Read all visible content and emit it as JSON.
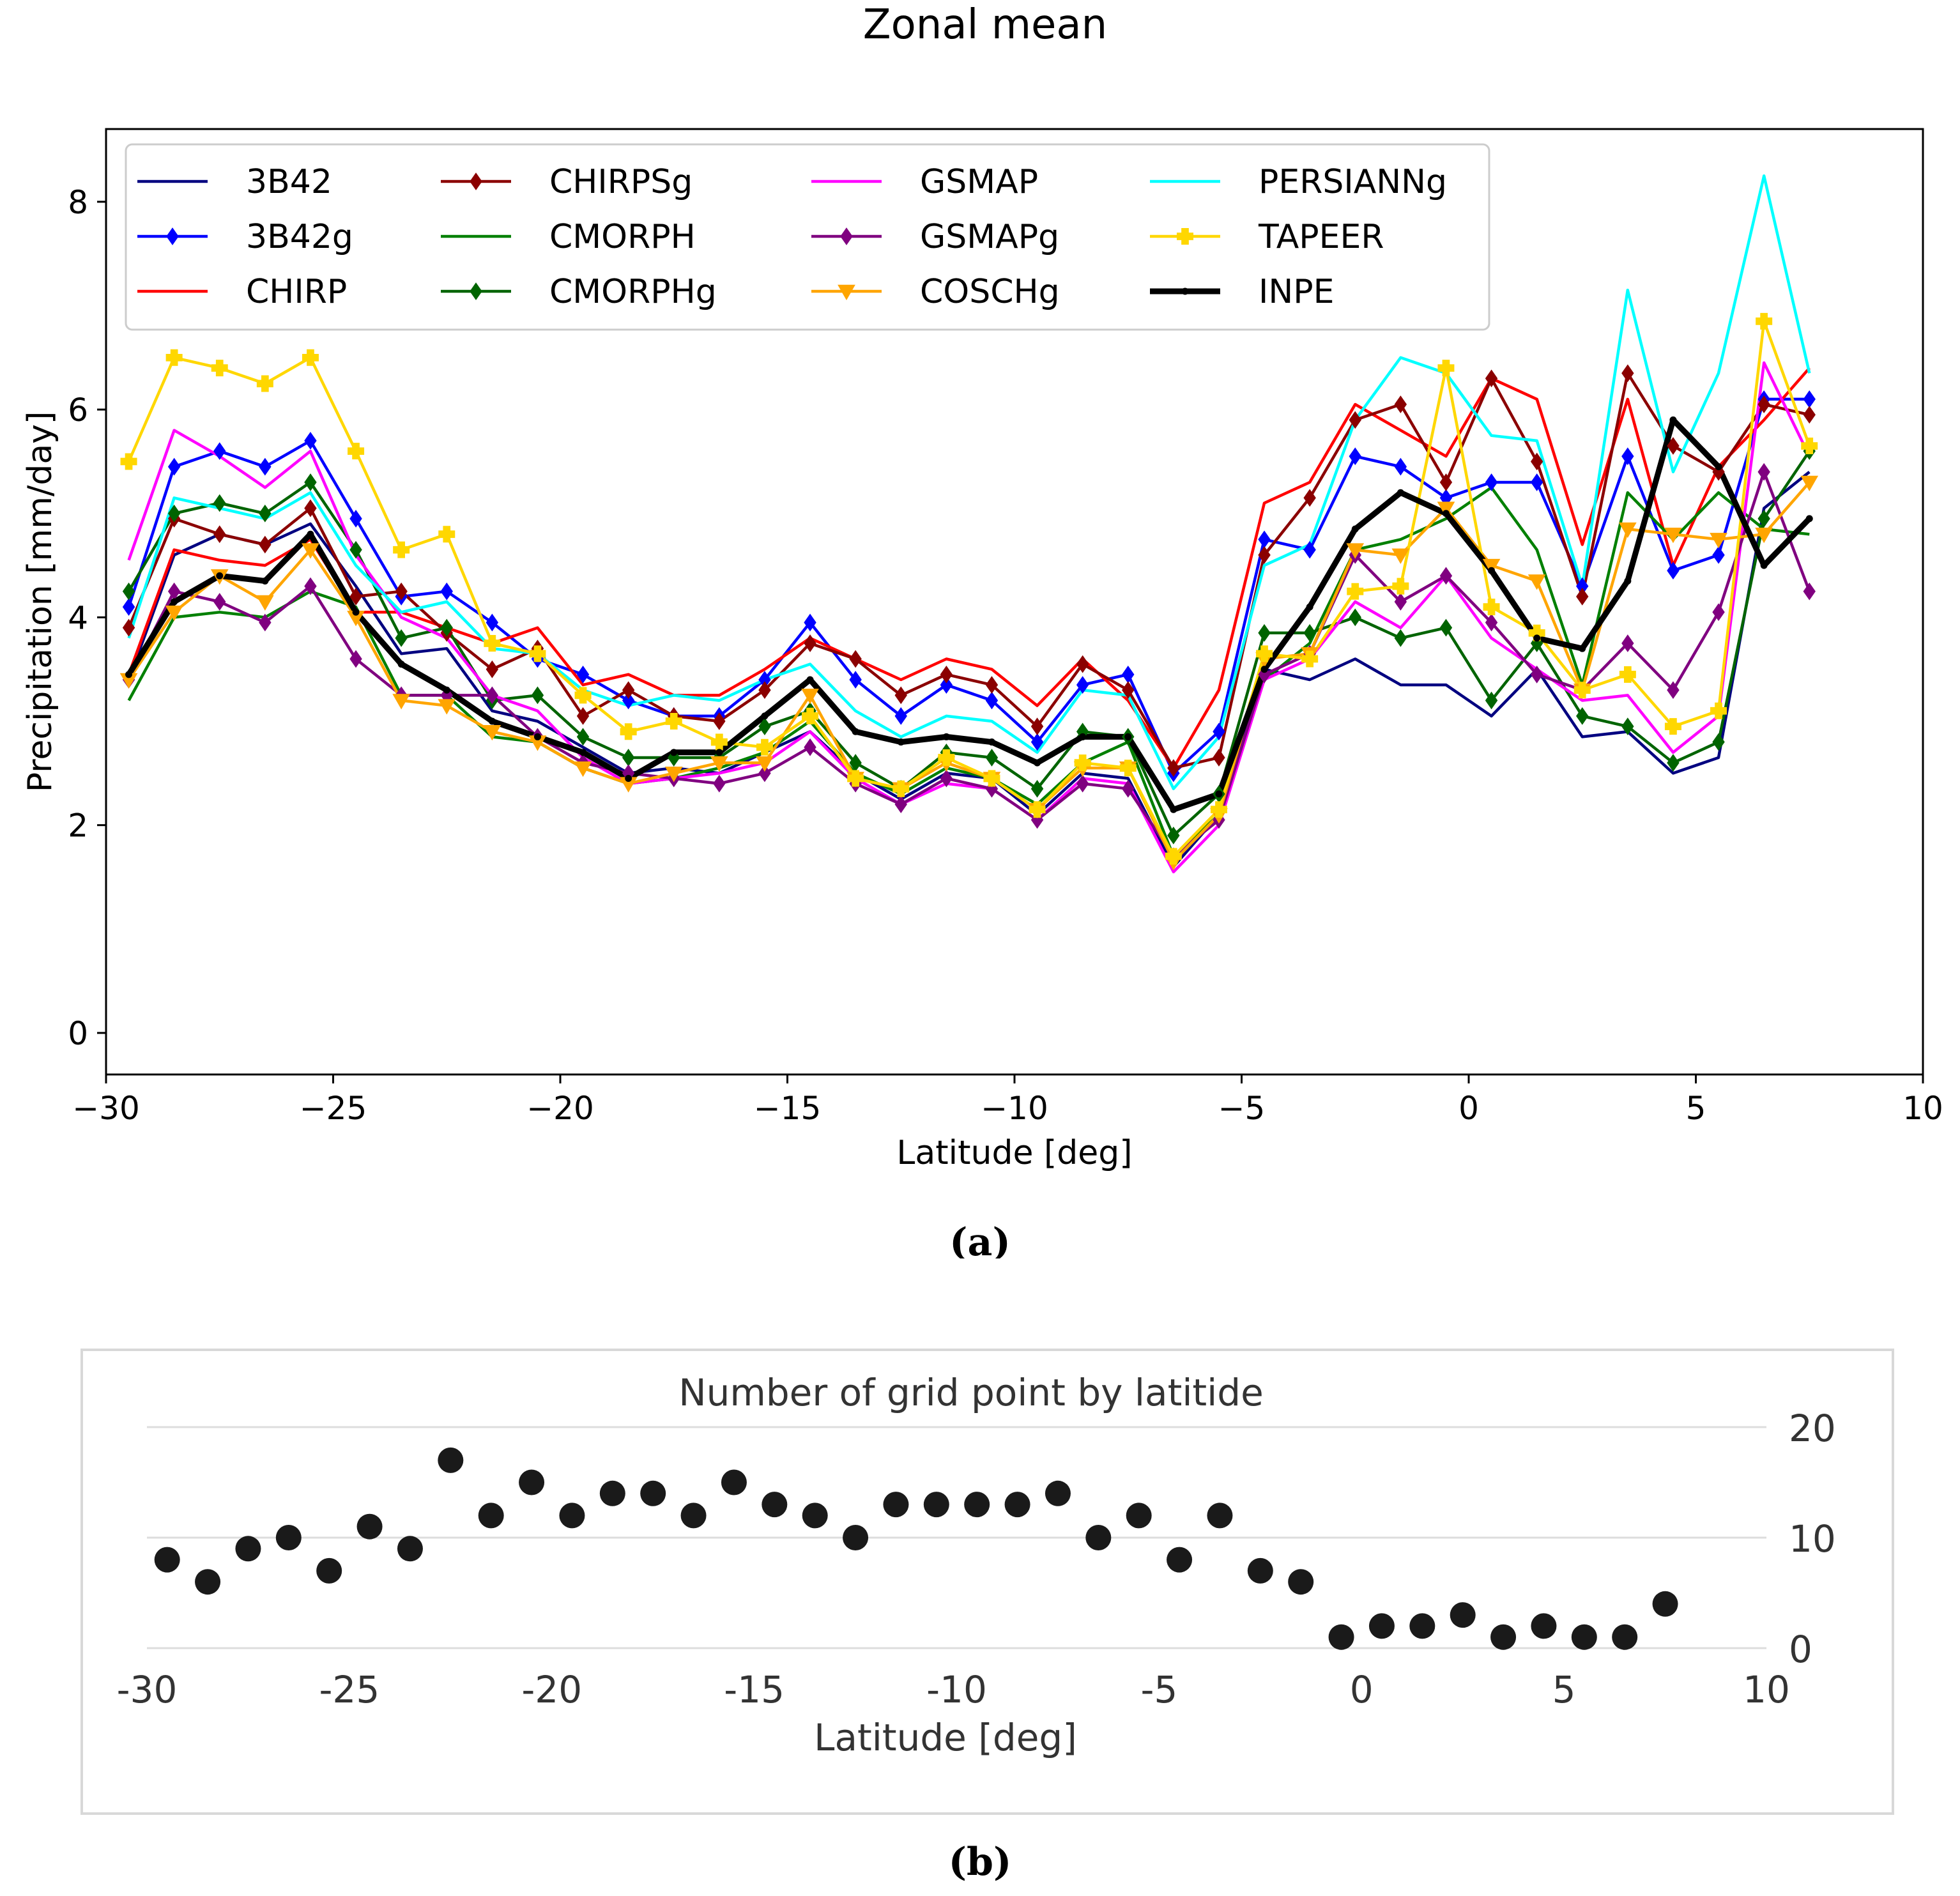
{
  "chart_data": [
    {
      "type": "line",
      "title": "Zonal mean",
      "xlabel": "Latitude [deg]",
      "ylabel": "Precipitation [mm/day]",
      "xlim": [
        -30,
        10
      ],
      "ylim": [
        -0.4,
        8.7
      ],
      "xticks": [
        -30,
        -25,
        -20,
        -15,
        -10,
        -5,
        0,
        5,
        10
      ],
      "xtick_labels": [
        "−30",
        "−25",
        "−20",
        "−15",
        "−10",
        "−5",
        "0",
        "5",
        "10"
      ],
      "yticks": [
        0,
        2,
        4,
        6,
        8
      ],
      "ytick_labels": [
        "0",
        "2",
        "4",
        "6",
        "8"
      ],
      "legend_position": "top-left",
      "caption": "(a)",
      "x": [
        -29.5,
        -28.5,
        -27.5,
        -26.5,
        -25.5,
        -24.5,
        -23.5,
        -22.5,
        -21.5,
        -20.5,
        -19.5,
        -18.5,
        -17.5,
        -16.5,
        -15.5,
        -14.5,
        -13.5,
        -12.5,
        -11.5,
        -10.5,
        -9.5,
        -8.5,
        -7.5,
        -6.5,
        -5.5,
        -4.5,
        -3.5,
        -2.5,
        -1.5,
        -0.5,
        0.5,
        1.5,
        2.5,
        3.5,
        4.5,
        5.5,
        6.5,
        7.5
      ],
      "series": [
        {
          "name": "3B42",
          "color": "#000080",
          "marker": "none",
          "values": [
            3.4,
            4.6,
            4.8,
            4.7,
            4.9,
            4.3,
            3.65,
            3.7,
            3.1,
            3.0,
            2.75,
            2.5,
            2.55,
            2.5,
            2.7,
            2.9,
            2.5,
            2.25,
            2.5,
            2.45,
            2.1,
            2.5,
            2.45,
            1.6,
            2.1,
            3.5,
            3.4,
            3.6,
            3.35,
            3.35,
            3.05,
            3.5,
            2.85,
            2.9,
            2.5,
            2.65,
            5.05,
            5.4
          ]
        },
        {
          "name": "3B42g",
          "color": "#0000ff",
          "marker": "diamond",
          "values": [
            4.1,
            5.45,
            5.6,
            5.45,
            5.7,
            4.95,
            4.2,
            4.25,
            3.95,
            3.6,
            3.45,
            3.2,
            3.05,
            3.05,
            3.4,
            3.95,
            3.4,
            3.05,
            3.35,
            3.2,
            2.8,
            3.35,
            3.45,
            2.5,
            2.9,
            4.75,
            4.65,
            5.55,
            5.45,
            5.15,
            5.3,
            5.3,
            4.3,
            5.55,
            4.45,
            4.6,
            6.1,
            6.1
          ]
        },
        {
          "name": "CHIRP",
          "color": "#ff0000",
          "marker": "none",
          "values": [
            3.45,
            4.65,
            4.55,
            4.5,
            4.75,
            4.05,
            4.05,
            3.9,
            3.75,
            3.9,
            3.35,
            3.45,
            3.25,
            3.25,
            3.5,
            3.8,
            3.6,
            3.4,
            3.6,
            3.5,
            3.15,
            3.6,
            3.2,
            2.55,
            3.3,
            5.1,
            5.3,
            6.05,
            5.8,
            5.55,
            6.3,
            6.1,
            4.7,
            6.1,
            4.5,
            5.45,
            5.9,
            6.4
          ]
        },
        {
          "name": "CHIRPSg",
          "color": "#8b0000",
          "marker": "diamond",
          "values": [
            3.9,
            4.95,
            4.8,
            4.7,
            5.05,
            4.2,
            4.25,
            3.85,
            3.5,
            3.7,
            3.05,
            3.3,
            3.05,
            3.0,
            3.3,
            3.75,
            3.6,
            3.25,
            3.45,
            3.35,
            2.95,
            3.55,
            3.3,
            2.55,
            2.65,
            4.6,
            5.15,
            5.9,
            6.05,
            5.3,
            6.3,
            5.5,
            4.2,
            6.35,
            5.65,
            5.4,
            6.05,
            5.95
          ]
        },
        {
          "name": "CMORPH",
          "color": "#008000",
          "marker": "none",
          "values": [
            3.2,
            4.0,
            4.05,
            4.0,
            4.25,
            4.1,
            3.25,
            3.25,
            2.85,
            2.8,
            2.55,
            2.4,
            2.45,
            2.55,
            2.7,
            3.0,
            2.5,
            2.3,
            2.55,
            2.45,
            2.2,
            2.6,
            2.8,
            1.7,
            2.1,
            3.4,
            3.75,
            4.65,
            4.75,
            4.95,
            5.25,
            4.65,
            3.35,
            5.2,
            4.75,
            5.2,
            4.85,
            4.8
          ]
        },
        {
          "name": "CMORPHg",
          "color": "#006400",
          "marker": "diamond",
          "values": [
            4.25,
            5.0,
            5.1,
            5.0,
            5.3,
            4.65,
            3.8,
            3.9,
            3.2,
            3.25,
            2.85,
            2.65,
            2.65,
            2.65,
            2.95,
            3.1,
            2.6,
            2.35,
            2.7,
            2.65,
            2.35,
            2.9,
            2.85,
            1.9,
            2.3,
            3.85,
            3.85,
            4.0,
            3.8,
            3.9,
            3.2,
            3.75,
            3.05,
            2.95,
            2.6,
            2.8,
            4.95,
            5.6
          ]
        },
        {
          "name": "GSMAP",
          "color": "#ff00ff",
          "marker": "none",
          "values": [
            4.55,
            5.8,
            5.55,
            5.25,
            5.6,
            4.6,
            4.0,
            3.8,
            3.25,
            3.1,
            2.65,
            2.4,
            2.45,
            2.5,
            2.6,
            2.9,
            2.45,
            2.2,
            2.4,
            2.35,
            2.05,
            2.45,
            2.4,
            1.55,
            2.0,
            3.4,
            3.6,
            4.15,
            3.9,
            4.4,
            3.8,
            3.5,
            3.2,
            3.25,
            2.7,
            3.05,
            6.45,
            5.55
          ]
        },
        {
          "name": "GSMAPg",
          "color": "#800080",
          "marker": "diamond",
          "values": [
            3.4,
            4.25,
            4.15,
            3.95,
            4.3,
            3.6,
            3.25,
            3.25,
            3.25,
            2.85,
            2.6,
            2.5,
            2.45,
            2.4,
            2.5,
            2.75,
            2.4,
            2.2,
            2.45,
            2.35,
            2.05,
            2.4,
            2.35,
            1.7,
            2.05,
            3.45,
            3.65,
            4.6,
            4.15,
            4.4,
            3.95,
            3.45,
            3.3,
            3.75,
            3.3,
            4.05,
            5.4,
            4.25
          ]
        },
        {
          "name": "COSCHg",
          "color": "#ffa500",
          "marker": "triangle-down",
          "values": [
            3.4,
            4.05,
            4.4,
            4.15,
            4.65,
            4.0,
            3.2,
            3.15,
            2.9,
            2.8,
            2.55,
            2.4,
            2.5,
            2.6,
            2.6,
            3.25,
            2.45,
            2.35,
            2.6,
            2.45,
            2.15,
            2.55,
            2.55,
            1.65,
            2.1,
            3.6,
            3.65,
            4.65,
            4.6,
            5.05,
            4.5,
            4.35,
            3.3,
            4.85,
            4.8,
            4.75,
            4.8,
            5.3
          ]
        },
        {
          "name": "PERSIANNg",
          "color": "#00ffff",
          "marker": "none",
          "values": [
            3.8,
            5.15,
            5.05,
            4.95,
            5.2,
            4.5,
            4.05,
            4.15,
            3.7,
            3.65,
            3.3,
            3.15,
            3.25,
            3.2,
            3.4,
            3.55,
            3.1,
            2.85,
            3.05,
            3.0,
            2.7,
            3.3,
            3.25,
            2.35,
            2.85,
            4.5,
            4.7,
            5.9,
            6.5,
            6.35,
            5.75,
            5.7,
            4.3,
            7.15,
            5.4,
            6.35,
            8.25,
            6.35
          ]
        },
        {
          "name": "TAPEER",
          "color": "#ffd700",
          "marker": "plus",
          "values": [
            5.5,
            6.5,
            6.4,
            6.25,
            6.5,
            5.6,
            4.65,
            4.8,
            3.75,
            3.65,
            3.25,
            2.9,
            3.0,
            2.8,
            2.75,
            3.05,
            2.45,
            2.35,
            2.65,
            2.45,
            2.15,
            2.6,
            2.55,
            1.7,
            2.15,
            3.65,
            3.6,
            4.25,
            4.3,
            6.4,
            4.1,
            3.85,
            3.3,
            3.45,
            2.95,
            3.1,
            6.85,
            5.65
          ]
        },
        {
          "name": "INPE",
          "color": "#000000",
          "marker": "dot",
          "values": [
            3.45,
            4.15,
            4.4,
            4.35,
            4.8,
            4.05,
            3.55,
            3.3,
            3.0,
            2.85,
            2.7,
            2.45,
            2.7,
            2.7,
            3.05,
            3.4,
            2.9,
            2.8,
            2.85,
            2.8,
            2.6,
            2.85,
            2.85,
            2.15,
            2.3,
            3.5,
            4.1,
            4.85,
            5.2,
            5.0,
            4.45,
            3.8,
            3.7,
            4.35,
            5.9,
            5.45,
            4.5,
            4.95
          ]
        }
      ]
    },
    {
      "type": "scatter",
      "title": "Number of grid point by latitide",
      "xlabel": "Latitude [deg]",
      "ylabel": "",
      "xlim": [
        -30,
        10
      ],
      "ylim": [
        0,
        20
      ],
      "xticks": [
        -30,
        -25,
        -20,
        -15,
        -10,
        -5,
        0,
        5,
        10
      ],
      "xtick_labels": [
        "-30",
        "-25",
        "-20",
        "-15",
        "-10",
        "-5",
        "0",
        "5",
        "10"
      ],
      "yticks": [
        0,
        10,
        20
      ],
      "ytick_labels": [
        "0",
        "10",
        "20"
      ],
      "caption": "(b)",
      "x": [
        -29.5,
        -28.5,
        -27.5,
        -26.5,
        -25.5,
        -24.5,
        -23.5,
        -22.5,
        -21.5,
        -20.5,
        -19.5,
        -18.5,
        -17.5,
        -16.5,
        -15.5,
        -14.5,
        -13.5,
        -12.5,
        -11.5,
        -10.5,
        -9.5,
        -8.5,
        -7.5,
        -6.5,
        -5.5,
        -4.5,
        -3.5,
        -2.5,
        -1.5,
        -0.5,
        0.5,
        1.5,
        2.5,
        3.5,
        4.5,
        5.5,
        6.5,
        7.5
      ],
      "values": [
        8,
        6,
        9,
        10,
        7,
        11,
        9,
        17,
        12,
        15,
        12,
        14,
        14,
        12,
        15,
        13,
        12,
        10,
        13,
        13,
        13,
        13,
        14,
        10,
        12,
        8,
        12,
        7,
        6,
        1,
        2,
        2,
        3,
        1,
        2,
        1,
        1,
        4
      ]
    }
  ]
}
